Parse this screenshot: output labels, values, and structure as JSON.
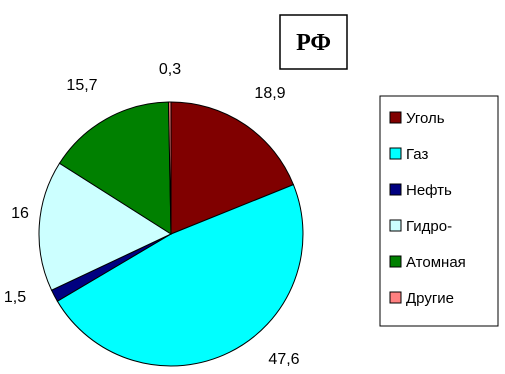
{
  "chart_data": {
    "type": "pie",
    "title": "РФ",
    "categories": [
      "Уголь",
      "Газ",
      "Нефть",
      "Гидро-",
      "Атомная",
      "Другие"
    ],
    "values": [
      18.9,
      47.6,
      1.5,
      16,
      15.7,
      0.3
    ],
    "data_labels": [
      "18,9",
      "47,6",
      "1,5",
      "16",
      "15,7",
      "0,3"
    ],
    "colors": [
      "#800000",
      "#00FFFF",
      "#000080",
      "#CCFFFF",
      "#008000",
      "#FF8080"
    ],
    "legend_position": "right",
    "start_angle_deg": 0,
    "direction": "clockwise"
  }
}
